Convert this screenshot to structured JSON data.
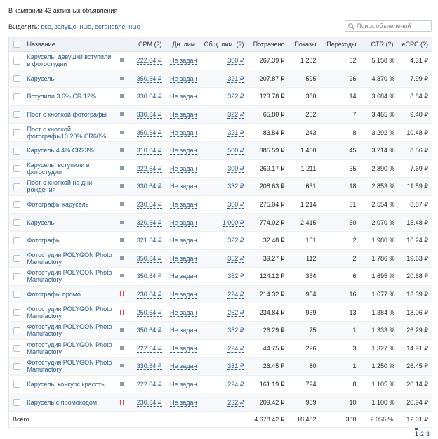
{
  "header": {
    "title": "В кампании 43 активных объявления"
  },
  "filter": {
    "label": "Выделить:",
    "options": [
      "все",
      "запущенные",
      "остановленные"
    ],
    "search_placeholder": "Поиск объявлений"
  },
  "table": {
    "columns": [
      "Название",
      "CPM (?)",
      "Дн. лим.",
      "Общ. лим. (?)",
      "Потрачено",
      "Показы",
      "Переходы",
      "CTR (?)",
      "eCPC (?)"
    ],
    "rows": [
      {
        "name": "Карусель, девушки вступили в фотостудии",
        "status": "stopped",
        "cpm": "222.64 ₽",
        "day_limit": "Не задан",
        "total_limit": "300 ₽",
        "spent": "267.39 ₽",
        "impressions": "1 202",
        "clicks": "62",
        "ctr": "5.158 %",
        "ecpc": "4.31 ₽"
      },
      {
        "name": "Карусель",
        "status": "stopped",
        "cpm": "350.64 ₽",
        "day_limit": "Не задан",
        "total_limit": "321 ₽",
        "spent": "207.87 ₽",
        "impressions": "595",
        "clicks": "26",
        "ctr": "4.370 %",
        "ecpc": "7.99 ₽"
      },
      {
        "name": "Вступили 3.6% CR 12%",
        "status": "stopped",
        "cpm": "330.64 ₽",
        "day_limit": "Не задан",
        "total_limit": "322 ₽",
        "spent": "123.78 ₽",
        "impressions": "380",
        "clicks": "14",
        "ctr": "3.684 %",
        "ecpc": "8.84 ₽"
      },
      {
        "name": "Пост с кнопкой фотографы",
        "status": "stopped",
        "cpm": "330.64 ₽",
        "day_limit": "Не задан",
        "total_limit": "322 ₽",
        "spent": "65.80 ₽",
        "impressions": "202",
        "clicks": "7",
        "ctr": "3.465 %",
        "ecpc": "9.40 ₽"
      },
      {
        "name": "Пост с кнопкой фотографы10.20% CR60%",
        "status": "stopped",
        "cpm": "350.64 ₽",
        "day_limit": "Не задан",
        "total_limit": "321 ₽",
        "spent": "83.84 ₽",
        "impressions": "243",
        "clicks": "8",
        "ctr": "3.292 %",
        "ecpc": "10.48 ₽"
      },
      {
        "name": "Карусель 4.4% CR23%",
        "status": "stopped",
        "cpm": "310.64 ₽",
        "day_limit": "Не задан",
        "total_limit": "500 ₽",
        "spent": "385.59 ₽",
        "impressions": "1 400",
        "clicks": "45",
        "ctr": "3.214 %",
        "ecpc": "8.56 ₽"
      },
      {
        "name": "Карусель, вступили в фотостудии",
        "status": "stopped",
        "cpm": "222.64 ₽",
        "day_limit": "Не задан",
        "total_limit": "300 ₽",
        "spent": "269.17 ₽",
        "impressions": "1 211",
        "clicks": "35",
        "ctr": "2.890 %",
        "ecpc": "7.69 ₽"
      },
      {
        "name": "Пост с кнопкой на дни рождения",
        "status": "stopped",
        "cpm": "330.64 ₽",
        "day_limit": "Не задан",
        "total_limit": "332 ₽",
        "spent": "208.63 ₽",
        "impressions": "631",
        "clicks": "18",
        "ctr": "2.853 %",
        "ecpc": "11.59 ₽"
      },
      {
        "name": "Фотографы карусель",
        "status": "stopped",
        "cpm": "230.64 ₽",
        "day_limit": "Не задан",
        "total_limit": "300 ₽",
        "spent": "275.04 ₽",
        "impressions": "1 214",
        "clicks": "31",
        "ctr": "2.554 %",
        "ecpc": "8.87 ₽"
      },
      {
        "name": "Карусель",
        "status": "stopped",
        "cpm": "320.64 ₽",
        "day_limit": "Не задан",
        "total_limit": "1 000 ₽",
        "spent": "774.02 ₽",
        "impressions": "2 415",
        "clicks": "50",
        "ctr": "2.070 %",
        "ecpc": "15.48 ₽"
      },
      {
        "name": "Фотографы",
        "status": "stopped",
        "cpm": "321.64 ₽",
        "day_limit": "Не задан",
        "total_limit": "322 ₽",
        "spent": "32.48 ₽",
        "impressions": "101",
        "clicks": "2",
        "ctr": "1.980 %",
        "ecpc": "16.24 ₽"
      },
      {
        "name": "Фотостудия POLYGON Photo Manufactory",
        "status": "stopped",
        "cpm": "350.64 ₽",
        "day_limit": "Не задан",
        "total_limit": "352 ₽",
        "spent": "39.27 ₽",
        "impressions": "112",
        "clicks": "2",
        "ctr": "1.786 %",
        "ecpc": "19.63 ₽"
      },
      {
        "name": "Фотостудия POLYGON Photo Manufactory",
        "status": "stopped",
        "cpm": "350.64 ₽",
        "day_limit": "Не задан",
        "total_limit": "352 ₽",
        "spent": "124.12 ₽",
        "impressions": "354",
        "clicks": "6",
        "ctr": "1.695 %",
        "ecpc": "20.68 ₽"
      },
      {
        "name": "Фотографы промо",
        "status": "paused",
        "cpm": "230.64 ₽",
        "day_limit": "Не задан",
        "total_limit": "224 ₽",
        "spent": "214.32 ₽",
        "impressions": "954",
        "clicks": "16",
        "ctr": "1.677 %",
        "ecpc": "13.39 ₽"
      },
      {
        "name": "Фотостудия POLYGON Photo Manufactory",
        "status": "paused",
        "cpm": "250.64 ₽",
        "day_limit": "Не задан",
        "total_limit": "252 ₽",
        "spent": "234.84 ₽",
        "impressions": "939",
        "clicks": "13",
        "ctr": "1.384 %",
        "ecpc": "18.06 ₽"
      },
      {
        "name": "Фотостудия POLYGON Photo Manufactory",
        "status": "stopped",
        "cpm": "350.64 ₽",
        "day_limit": "Не задан",
        "total_limit": "352 ₽",
        "spent": "26.29 ₽",
        "impressions": "75",
        "clicks": "1",
        "ctr": "1.333 %",
        "ecpc": "26.29 ₽"
      },
      {
        "name": "Фотостудия POLYGON Photo Manufactory",
        "status": "stopped",
        "cpm": "222.64 ₽",
        "day_limit": "Не задан",
        "total_limit": "224 ₽",
        "spent": "44.75 ₽",
        "impressions": "226",
        "clicks": "3",
        "ctr": "1.327 %",
        "ecpc": "14.91 ₽"
      },
      {
        "name": "Фотостудия POLYGON Photo Manufactory",
        "status": "stopped",
        "cpm": "330.64 ₽",
        "day_limit": "Не задан",
        "total_limit": "331 ₽",
        "spent": "26.45 ₽",
        "impressions": "80",
        "clicks": "1",
        "ctr": "1.250 %",
        "ecpc": "26.45 ₽"
      },
      {
        "name": "Карусель, конкурс красоты",
        "status": "stopped",
        "cpm": "222.64 ₽",
        "day_limit": "Не задан",
        "total_limit": "224 ₽",
        "spent": "161.19 ₽",
        "impressions": "724",
        "clicks": "8",
        "ctr": "1.105 %",
        "ecpc": "20.14 ₽"
      },
      {
        "name": "Карусель с промокодом",
        "status": "paused",
        "cpm": "230.64 ₽",
        "day_limit": "Не задан",
        "total_limit": "232 ₽",
        "spent": "209.42 ₽",
        "impressions": "909",
        "clicks": "10",
        "ctr": "1.100 %",
        "ecpc": "20.94 ₽"
      }
    ],
    "total": {
      "label": "Всего",
      "spent": "4 678.42 ₽",
      "impressions": "18 482",
      "clicks": "380",
      "ctr": "2.056 %",
      "ecpc": "12.31 ₽"
    }
  },
  "pagination": [
    "1",
    "2",
    "3"
  ]
}
